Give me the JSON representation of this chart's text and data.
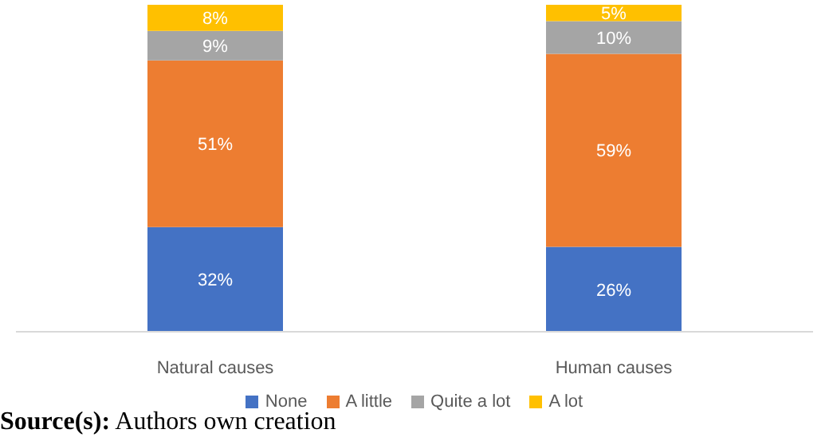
{
  "chart_data": {
    "type": "bar",
    "stacked": true,
    "categories": [
      "Natural causes",
      "Human causes"
    ],
    "series": [
      {
        "name": "None",
        "color": "#4472c4",
        "values": [
          32,
          26
        ],
        "value_labels": [
          "32%",
          "26%"
        ]
      },
      {
        "name": "A little",
        "color": "#ed7d31",
        "values": [
          51,
          59
        ],
        "value_labels": [
          "51%",
          "59%"
        ]
      },
      {
        "name": "Quite a lot",
        "color": "#a5a5a5",
        "values": [
          9,
          10
        ],
        "value_labels": [
          "9%",
          "10%"
        ]
      },
      {
        "name": "A lot",
        "color": "#ffc000",
        "values": [
          8,
          5
        ],
        "value_labels": [
          "8%",
          "5%"
        ]
      }
    ],
    "ylim": [
      0,
      100
    ],
    "tick_labels": "x",
    "grid": false,
    "legend": "bottom",
    "annotations": [
      "Source(s): Authors own creation"
    ]
  }
}
